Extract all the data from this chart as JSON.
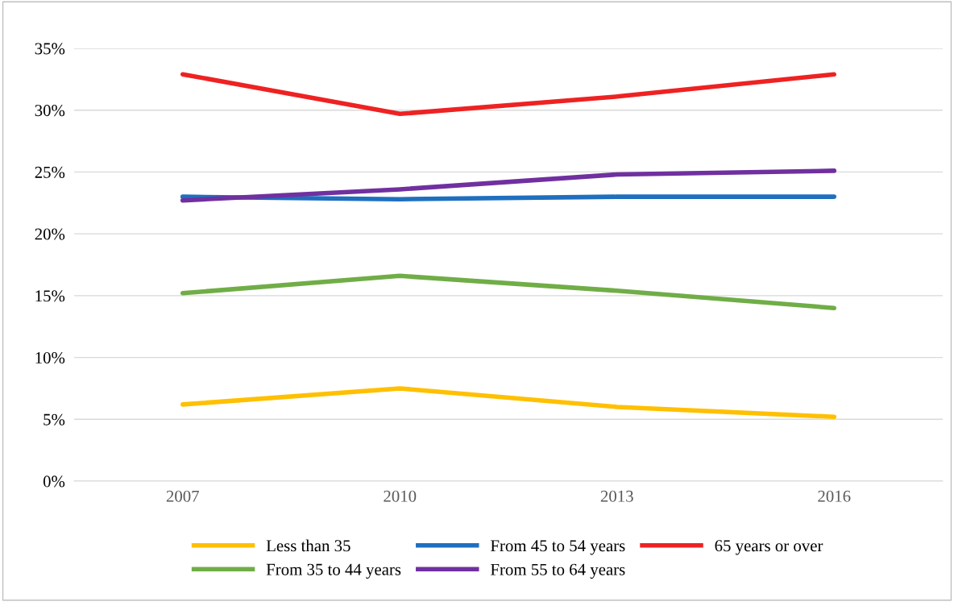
{
  "chart_data": {
    "type": "line",
    "categories": [
      "2007",
      "2010",
      "2013",
      "2016"
    ],
    "series": [
      {
        "name": "Less than 35",
        "color": "#ffc000",
        "values": [
          6.2,
          7.5,
          6.0,
          5.2
        ]
      },
      {
        "name": "From 35 to 44 years",
        "color": "#70ad47",
        "values": [
          15.2,
          16.6,
          15.4,
          14.0
        ]
      },
      {
        "name": "From 45 to 54 years",
        "color": "#1f6fbf",
        "values": [
          23.0,
          22.8,
          23.0,
          23.0
        ]
      },
      {
        "name": "From 55 to 64 years",
        "color": "#7030a0",
        "values": [
          22.7,
          23.6,
          24.8,
          25.1
        ]
      },
      {
        "name": "65 years or over",
        "color": "#ee2222",
        "values": [
          32.9,
          29.7,
          31.1,
          32.9
        ]
      }
    ],
    "ylim": [
      0,
      35
    ],
    "yticks": [
      {
        "value": 0,
        "label": "0%"
      },
      {
        "value": 5,
        "label": "5%"
      },
      {
        "value": 10,
        "label": "10%"
      },
      {
        "value": 15,
        "label": "15%"
      },
      {
        "value": 20,
        "label": "20%"
      },
      {
        "value": 25,
        "label": "25%"
      },
      {
        "value": 30,
        "label": "30%"
      },
      {
        "value": 35,
        "label": "35%"
      }
    ],
    "grid": "y",
    "legend": "bottom",
    "marker": "none",
    "line_style": "solid"
  }
}
